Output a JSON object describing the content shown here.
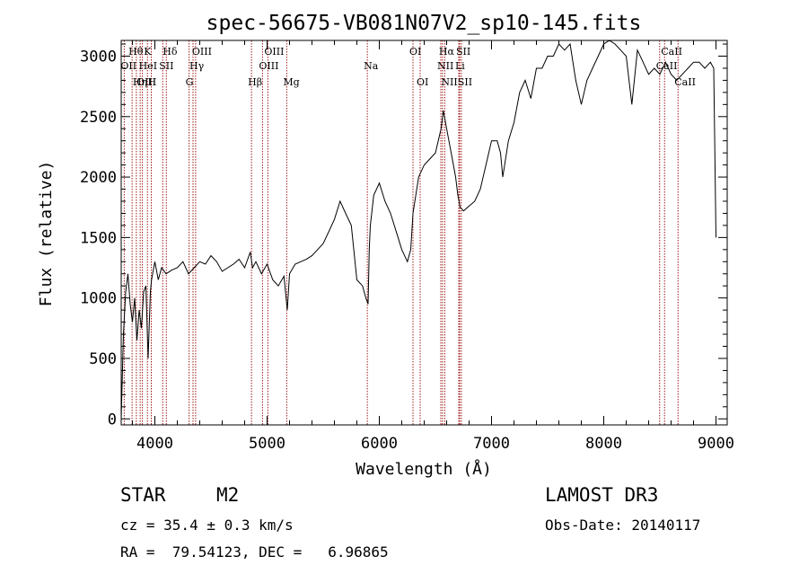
{
  "chart_data": {
    "type": "line",
    "title": "spec-56675-VB081N07V2_sp10-145.fits",
    "xlabel": "Wavelength (Å)",
    "ylabel": "Flux (relative)",
    "xlim": [
      3700,
      9100
    ],
    "ylim": [
      -50,
      3130
    ],
    "xticks": [
      4000,
      5000,
      6000,
      7000,
      8000,
      9000
    ],
    "yticks": [
      0,
      500,
      1000,
      1500,
      2000,
      2500,
      3000
    ],
    "series": [
      {
        "name": "flux",
        "x": [
          3700,
          3720,
          3740,
          3760,
          3780,
          3800,
          3820,
          3840,
          3860,
          3880,
          3900,
          3920,
          3940,
          3960,
          3970,
          3980,
          4000,
          4030,
          4060,
          4100,
          4150,
          4200,
          4250,
          4300,
          4350,
          4400,
          4450,
          4500,
          4550,
          4600,
          4650,
          4700,
          4750,
          4800,
          4850,
          4870,
          4900,
          4950,
          5000,
          5050,
          5100,
          5150,
          5180,
          5200,
          5250,
          5300,
          5350,
          5400,
          5450,
          5500,
          5550,
          5600,
          5650,
          5700,
          5750,
          5800,
          5850,
          5880,
          5900,
          5910,
          5920,
          5950,
          6000,
          6050,
          6100,
          6150,
          6200,
          6250,
          6280,
          6300,
          6350,
          6400,
          6450,
          6500,
          6550,
          6570,
          6600,
          6620,
          6650,
          6680,
          6700,
          6720,
          6750,
          6800,
          6850,
          6900,
          6950,
          7000,
          7050,
          7080,
          7100,
          7150,
          7200,
          7250,
          7300,
          7350,
          7400,
          7450,
          7500,
          7550,
          7600,
          7650,
          7700,
          7750,
          7800,
          7850,
          7900,
          7950,
          8000,
          8050,
          8100,
          8150,
          8200,
          8250,
          8300,
          8350,
          8400,
          8450,
          8500,
          8550,
          8600,
          8650,
          8700,
          8750,
          8800,
          8850,
          8900,
          8950,
          8980,
          9000
        ],
        "y": [
          0,
          700,
          1050,
          1200,
          950,
          800,
          1000,
          650,
          900,
          750,
          1050,
          1100,
          500,
          1050,
          1150,
          1200,
          1300,
          1150,
          1250,
          1200,
          1230,
          1250,
          1300,
          1200,
          1250,
          1300,
          1280,
          1350,
          1300,
          1220,
          1250,
          1280,
          1320,
          1250,
          1380,
          1250,
          1300,
          1200,
          1280,
          1150,
          1100,
          1180,
          900,
          1200,
          1280,
          1300,
          1320,
          1350,
          1400,
          1450,
          1550,
          1650,
          1800,
          1700,
          1600,
          1150,
          1100,
          1000,
          950,
          1400,
          1600,
          1850,
          1950,
          1800,
          1700,
          1550,
          1400,
          1300,
          1400,
          1700,
          2000,
          2100,
          2150,
          2200,
          2400,
          2550,
          2400,
          2300,
          2150,
          2000,
          1850,
          1750,
          1720,
          1760,
          1800,
          1900,
          2100,
          2300,
          2300,
          2200,
          2000,
          2300,
          2450,
          2700,
          2800,
          2650,
          2900,
          2900,
          3000,
          3000,
          3100,
          3050,
          3100,
          2800,
          2600,
          2800,
          2900,
          3000,
          3100,
          3130,
          3100,
          3050,
          3000,
          2600,
          3050,
          2950,
          2850,
          2900,
          2850,
          2950,
          2850,
          2800,
          2850,
          2900,
          2950,
          2950,
          2900,
          2950,
          2900,
          1500
        ]
      }
    ],
    "spectral_lines": [
      {
        "label": "Hθ",
        "wl": 3797,
        "row": 1
      },
      {
        "label": "OII",
        "wl": 3727,
        "row": 2
      },
      {
        "label": "OIII",
        "wl": 3869,
        "row": 3
      },
      {
        "label": "K",
        "wl": 3934,
        "row": 1
      },
      {
        "label": "HeI",
        "wl": 3889,
        "row": 2
      },
      {
        "label": "Hη",
        "wl": 3835,
        "row": 3
      },
      {
        "label": "SII",
        "wl": 4070,
        "row": 2
      },
      {
        "label": "H",
        "wl": 3968,
        "row": 3
      },
      {
        "label": "Hδ",
        "wl": 4102,
        "row": 1
      },
      {
        "label": "OIII",
        "wl": 4363,
        "row": 1
      },
      {
        "label": "Hγ",
        "wl": 4340,
        "row": 2
      },
      {
        "label": "G",
        "wl": 4305,
        "row": 3
      },
      {
        "label": "Hβ",
        "wl": 4861,
        "row": 3
      },
      {
        "label": "OIII",
        "wl": 5007,
        "row": 1
      },
      {
        "label": "OIII",
        "wl": 4959,
        "row": 2
      },
      {
        "label": "Mg",
        "wl": 5175,
        "row": 3
      },
      {
        "label": "Na",
        "wl": 5893,
        "row": 2
      },
      {
        "label": "OI",
        "wl": 6300,
        "row": 1
      },
      {
        "label": "OI",
        "wl": 6364,
        "row": 3
      },
      {
        "label": "Hα",
        "wl": 6563,
        "row": 1
      },
      {
        "label": "SII",
        "wl": 6716,
        "row": 1
      },
      {
        "label": "NII",
        "wl": 6548,
        "row": 2
      },
      {
        "label": "Li",
        "wl": 6708,
        "row": 2
      },
      {
        "label": "NII",
        "wl": 6583,
        "row": 3
      },
      {
        "label": "SII",
        "wl": 6731,
        "row": 3
      },
      {
        "label": "CaII",
        "wl": 8542,
        "row": 1
      },
      {
        "label": "CaII",
        "wl": 8498,
        "row": 2
      },
      {
        "label": "CaII",
        "wl": 8662,
        "row": 3
      }
    ],
    "grid": false,
    "legend": "none"
  },
  "info": {
    "object_class": "STAR",
    "subclass": "M2",
    "survey": "LAMOST DR3",
    "cz": "cz = 35.4 ± 0.3 km/s",
    "obs_date": "Obs-Date: 20140117",
    "coords": "RA =  79.54123, DEC =   6.96865"
  },
  "colors": {
    "line": "#000000",
    "marker": "#a01818",
    "background": "#ffffff"
  }
}
